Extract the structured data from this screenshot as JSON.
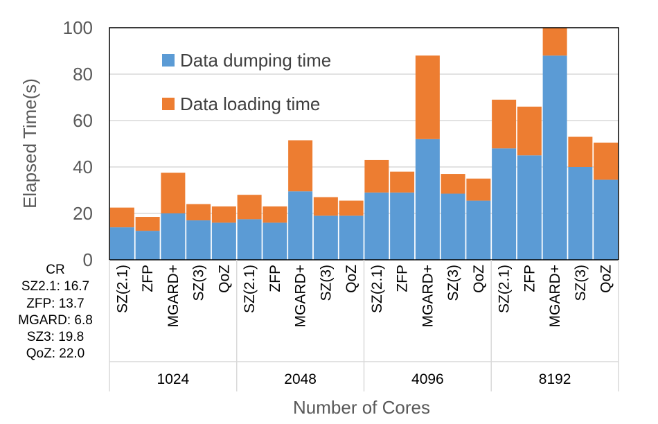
{
  "chart_data": {
    "type": "bar",
    "stacked": true,
    "ylabel": "Elapsed Time(s)",
    "xlabel": "Number of Cores",
    "ylim": [
      0,
      100
    ],
    "yticks": [
      0,
      20,
      40,
      60,
      80,
      100
    ],
    "groups": [
      "1024",
      "2048",
      "4096",
      "8192"
    ],
    "categories": [
      "SZ(2.1)",
      "ZFP",
      "MGARD+",
      "SZ(3)",
      "QoZ"
    ],
    "legend_position": "top-left",
    "series": [
      {
        "name": "Data dumping time",
        "color": "#5B9BD5",
        "values": [
          [
            14,
            12.5,
            20,
            17,
            16
          ],
          [
            17.5,
            16,
            29.5,
            19,
            19
          ],
          [
            29,
            29,
            52,
            28.5,
            25.5
          ],
          [
            48,
            45,
            88,
            40,
            34.5
          ]
        ]
      },
      {
        "name": "Data loading time",
        "color": "#ED7D31",
        "values": [
          [
            8.5,
            6,
            17.5,
            7,
            7
          ],
          [
            10.5,
            7,
            22,
            8,
            6.5
          ],
          [
            14,
            9,
            36,
            8.5,
            9.5
          ],
          [
            21,
            21,
            12,
            13,
            16
          ]
        ]
      }
    ]
  },
  "cr_annotation": {
    "title": "CR",
    "lines": [
      "SZ2.1: 16.7",
      "ZFP: 13.7",
      "MGARD: 6.8",
      "SZ3: 19.8",
      "QoZ: 22.0"
    ]
  }
}
